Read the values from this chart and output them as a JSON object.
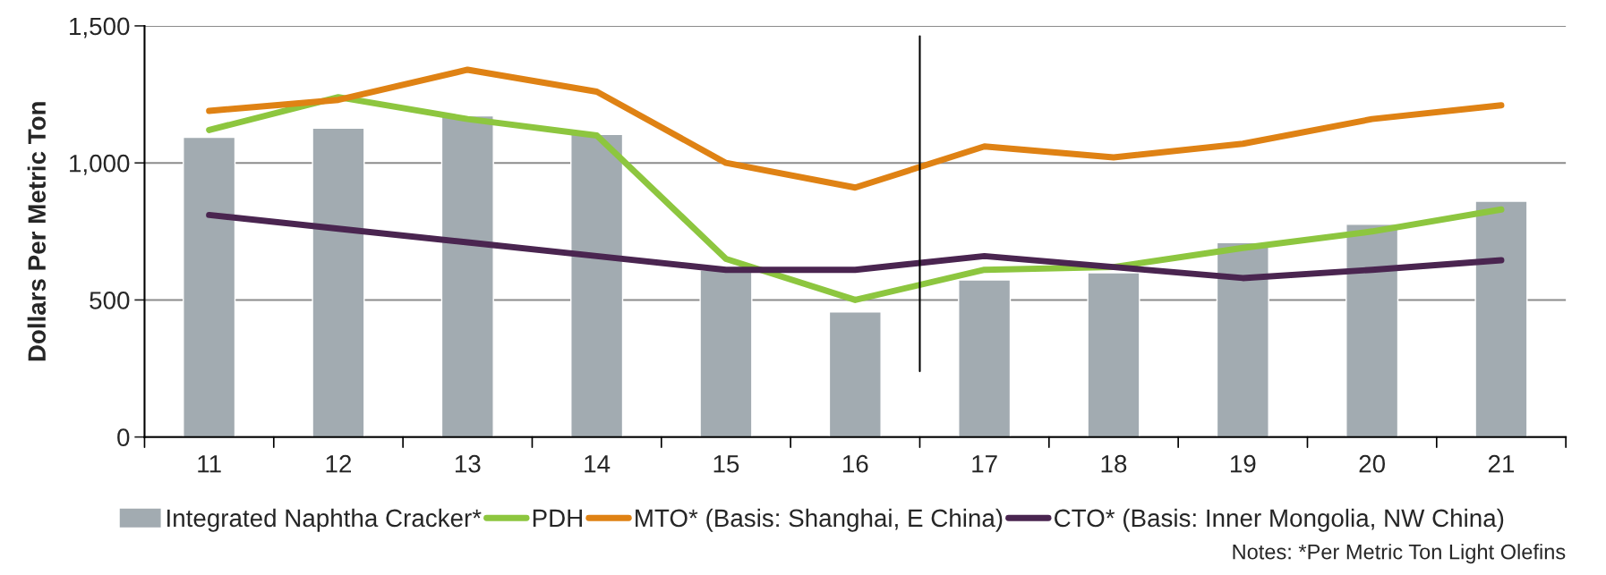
{
  "chart_data": {
    "type": "bar",
    "ylabel": "Dollars Per Metric Ton",
    "x": [
      11,
      12,
      13,
      14,
      15,
      16,
      17,
      18,
      19,
      20,
      21
    ],
    "series": [
      {
        "name": "Integrated Naphtha Cracker*",
        "color": "#a2abb1",
        "values": [
          1093,
          1127,
          1172,
          1104,
          610,
          456,
          573,
          599,
          709,
          776,
          860
        ]
      },
      {
        "name": "PDH",
        "type": "line",
        "color": "#8dc63f",
        "values": [
          1120,
          1240,
          1160,
          1100,
          650,
          500,
          610,
          620,
          690,
          750,
          830
        ]
      },
      {
        "name": "MTO* (Basis: Shanghai, E China)",
        "type": "line",
        "color": "#df8214",
        "values": [
          1190,
          1230,
          1340,
          1260,
          1000,
          910,
          1060,
          1020,
          1070,
          1160,
          1210
        ]
      },
      {
        "name": "CTO* (Basis: Inner Mongolia, NW China)",
        "type": "line",
        "color": "#4a2550",
        "values": [
          810,
          760,
          710,
          660,
          610,
          610,
          660,
          620,
          580,
          610,
          645
        ]
      }
    ],
    "xlim": [
      10.5,
      21.5
    ],
    "xticks": [
      11,
      12,
      13,
      14,
      15,
      16,
      17,
      18,
      19,
      20,
      21
    ],
    "ylim": [
      0,
      1500
    ],
    "yticks": [
      0,
      {
        "value": 500,
        "label": "500"
      },
      {
        "value": 1000,
        "label": "1,000"
      },
      {
        "value": 1500,
        "label": "1,500"
      }
    ],
    "ref_lines": [
      {
        "axis": "x",
        "value": 16.5,
        "color": "#000000"
      }
    ],
    "grid": "y",
    "legend": "bottom",
    "line_style": "solid",
    "annotations": [
      "Notes: *Per Metric Ton Light Olefins"
    ]
  }
}
